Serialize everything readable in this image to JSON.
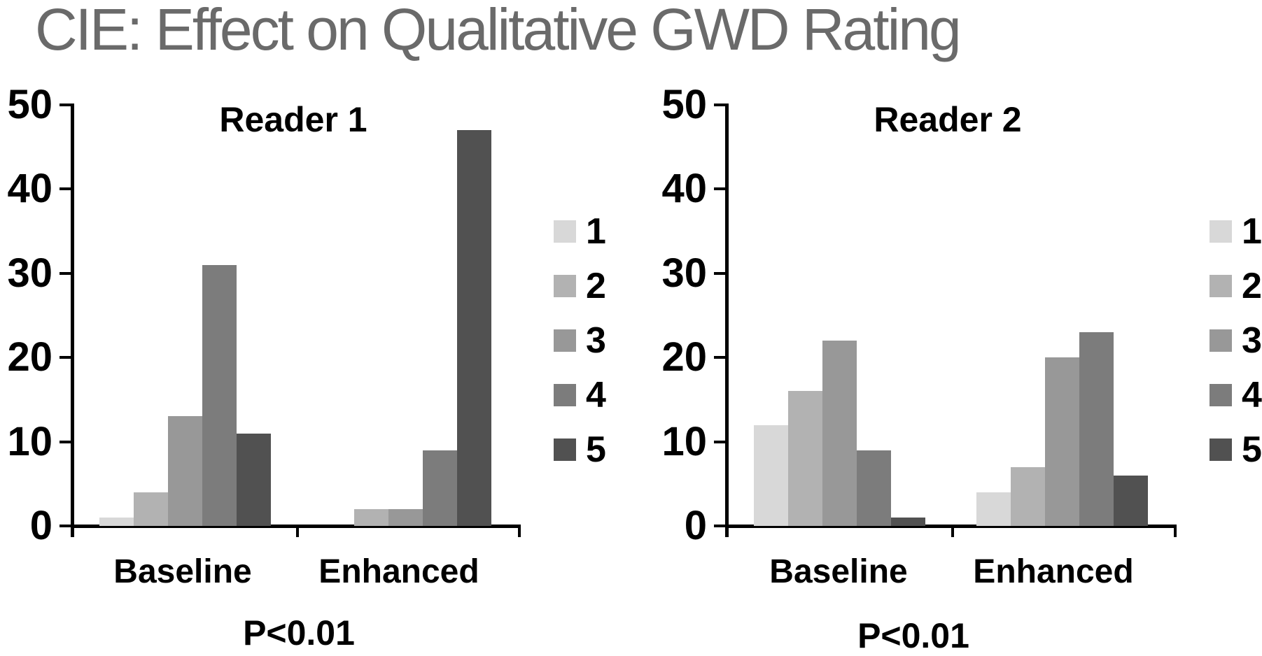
{
  "title": "CIE: Effect on Qualitative GWD Rating",
  "title_color": "#6a6a6a",
  "text_color": "#000000",
  "rating_colors": [
    "#d8d8d8",
    "#b2b2b2",
    "#989898",
    "#7c7c7c",
    "#515151"
  ],
  "chart_data": [
    {
      "type": "bar",
      "panel_title": "Reader 1",
      "categories": [
        "Baseline",
        "Enhanced"
      ],
      "series": [
        {
          "name": "1",
          "values": [
            1,
            0
          ]
        },
        {
          "name": "2",
          "values": [
            4,
            2
          ]
        },
        {
          "name": "3",
          "values": [
            13,
            2
          ]
        },
        {
          "name": "4",
          "values": [
            31,
            9
          ]
        },
        {
          "name": "5",
          "values": [
            11,
            47
          ]
        }
      ],
      "annotation": "P<0.01",
      "ylabel": "",
      "xlabel": "",
      "ylim": [
        0,
        50
      ],
      "yticks": [
        0,
        10,
        20,
        30,
        40,
        50
      ],
      "grid": "off",
      "legend_labels": [
        "1",
        "2",
        "3",
        "4",
        "5"
      ],
      "legend_position": "right"
    },
    {
      "type": "bar",
      "panel_title": "Reader 2",
      "categories": [
        "Baseline",
        "Enhanced"
      ],
      "series": [
        {
          "name": "1",
          "values": [
            12,
            4
          ]
        },
        {
          "name": "2",
          "values": [
            16,
            7
          ]
        },
        {
          "name": "3",
          "values": [
            22,
            20
          ]
        },
        {
          "name": "4",
          "values": [
            9,
            23
          ]
        },
        {
          "name": "5",
          "values": [
            1,
            6
          ]
        }
      ],
      "annotation": "P<0.01",
      "ylabel": "",
      "xlabel": "",
      "ylim": [
        0,
        50
      ],
      "yticks": [
        0,
        10,
        20,
        30,
        40,
        50
      ],
      "grid": "off",
      "legend_labels": [
        "1",
        "2",
        "3",
        "4",
        "5"
      ],
      "legend_position": "right"
    }
  ]
}
